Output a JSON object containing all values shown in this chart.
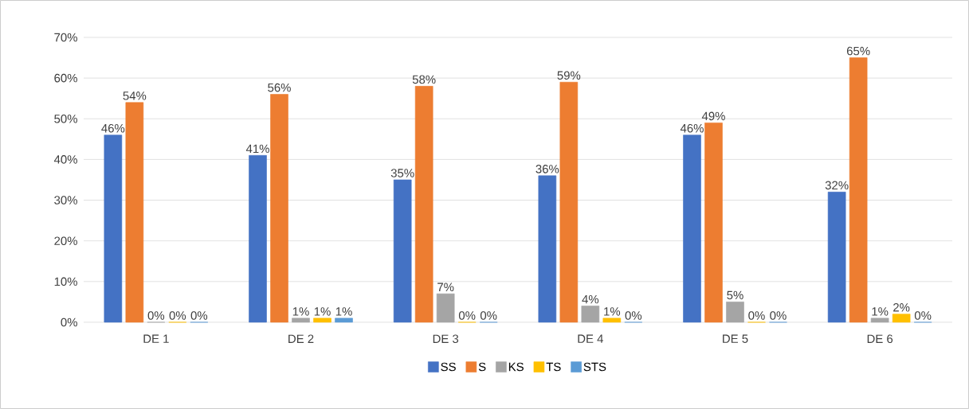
{
  "chart_data": {
    "type": "bar",
    "categories": [
      "DE 1",
      "DE 2",
      "DE 3",
      "DE 4",
      "DE 5",
      "DE 6"
    ],
    "series": [
      {
        "name": "SS",
        "color": "#4472c4",
        "values": [
          46,
          41,
          35,
          36,
          46,
          32
        ],
        "value_labels": [
          "46%",
          "41%",
          "35%",
          "36%",
          "46%",
          "32%"
        ]
      },
      {
        "name": "S",
        "color": "#ed7d31",
        "values": [
          54,
          56,
          58,
          59,
          49,
          65
        ],
        "value_labels": [
          "54%",
          "56%",
          "58%",
          "59%",
          "49%",
          "65%"
        ]
      },
      {
        "name": "KS",
        "color": "#a5a5a5",
        "values": [
          0,
          1,
          7,
          4,
          5,
          1
        ],
        "value_labels": [
          "0%",
          "1%",
          "7%",
          "4%",
          "5%",
          "1%"
        ]
      },
      {
        "name": "TS",
        "color": "#ffc000",
        "values": [
          0,
          1,
          0,
          1,
          0,
          2
        ],
        "value_labels": [
          "0%",
          "1%",
          "0%",
          "1%",
          "0%",
          "2%"
        ]
      },
      {
        "name": "STS",
        "color": "#5b9bd5",
        "values": [
          0,
          1,
          0,
          0,
          0,
          0
        ],
        "value_labels": [
          "0%",
          "1%",
          "0%",
          "0%",
          "0%",
          "0%"
        ]
      }
    ],
    "ylim": [
      0,
      70
    ],
    "yticks": [
      {
        "value": 0,
        "label": "0%"
      },
      {
        "value": 10,
        "label": "10%"
      },
      {
        "value": 20,
        "label": "20%"
      },
      {
        "value": 30,
        "label": "30%"
      },
      {
        "value": 40,
        "label": "40%"
      },
      {
        "value": 50,
        "label": "50%"
      },
      {
        "value": 60,
        "label": "60%"
      },
      {
        "value": 70,
        "label": "70%"
      }
    ],
    "grid": "y",
    "legend": "bottom"
  }
}
